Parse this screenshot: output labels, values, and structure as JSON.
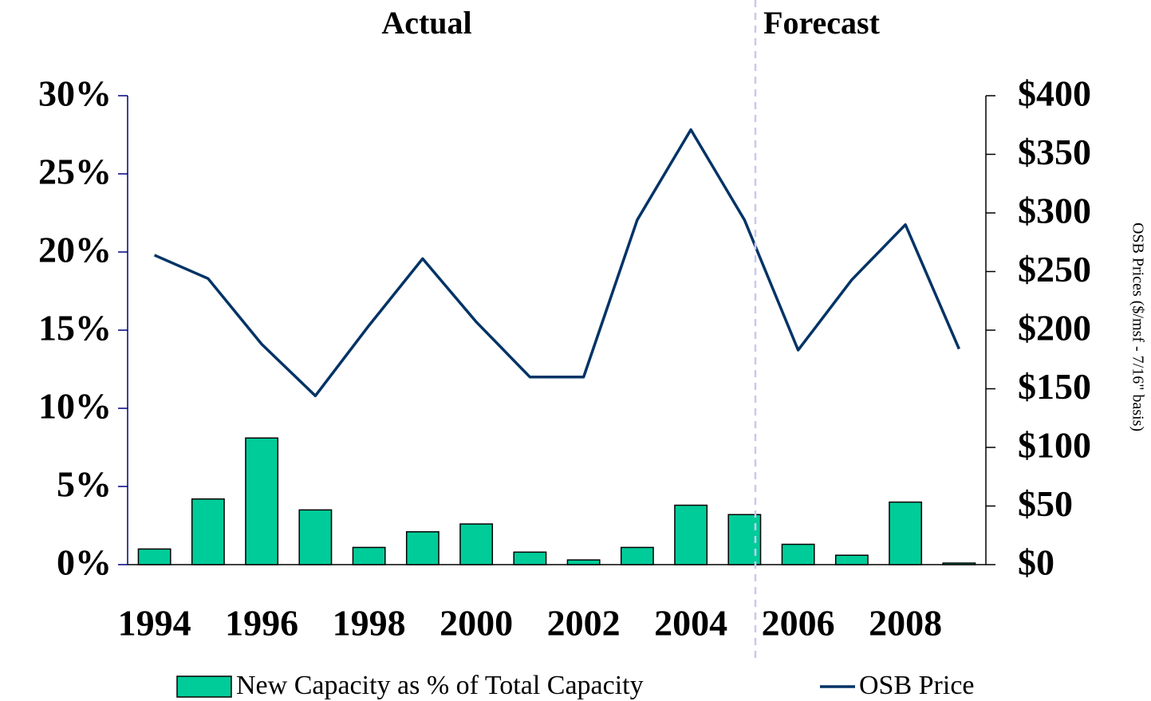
{
  "chart_data": {
    "type": "bar-line",
    "annotations": [
      "Actual",
      "Forecast"
    ],
    "y2label": "OSB Prices ($/msf - 7/16\" basis)",
    "categories": [
      "1994",
      null,
      "1996",
      null,
      "1998",
      null,
      "2000",
      null,
      "2002",
      null,
      "2004",
      null,
      "2006",
      null,
      "2008",
      null
    ],
    "series": [
      {
        "name": "New Capacity as % of Total Capacity",
        "type": "bar",
        "color": "#00cc99",
        "values": [
          1.0,
          4.2,
          8.1,
          3.5,
          1.1,
          2.1,
          2.6,
          0.8,
          0.3,
          1.1,
          3.8,
          3.2,
          1.3,
          0.6,
          4.0,
          0.1
        ]
      },
      {
        "name": "OSB Price",
        "type": "line",
        "axis": "y2",
        "color": "#003366",
        "values": [
          264,
          244,
          188,
          144,
          204,
          261,
          207,
          160,
          160,
          294,
          371,
          294,
          183,
          243,
          290,
          184
        ]
      }
    ],
    "ylim": [
      0,
      30
    ],
    "yticks": [
      {
        "value": 0,
        "label": "0%"
      },
      {
        "value": 5,
        "label": "5%"
      },
      {
        "value": 10,
        "label": "10%"
      },
      {
        "value": 15,
        "label": "15%"
      },
      {
        "value": 20,
        "label": "20%"
      },
      {
        "value": 25,
        "label": "25%"
      },
      {
        "value": 30,
        "label": "30%"
      }
    ],
    "y2lim": [
      0,
      400
    ],
    "y2ticks": [
      {
        "value": 0,
        "label": "$0"
      },
      {
        "value": 50,
        "label": "$50"
      },
      {
        "value": 100,
        "label": "$100"
      },
      {
        "value": 150,
        "label": "$150"
      },
      {
        "value": 200,
        "label": "$200"
      },
      {
        "value": 250,
        "label": "$250"
      },
      {
        "value": 300,
        "label": "$300"
      },
      {
        "value": 350,
        "label": "$350"
      },
      {
        "value": 400,
        "label": "$400"
      }
    ],
    "grid": false,
    "legend": "bottom"
  }
}
